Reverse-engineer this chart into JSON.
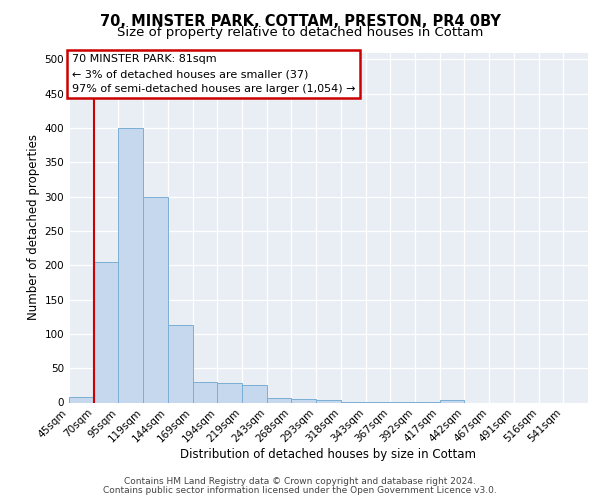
{
  "title_line1": "70, MINSTER PARK, COTTAM, PRESTON, PR4 0BY",
  "title_line2": "Size of property relative to detached houses in Cottam",
  "xlabel": "Distribution of detached houses by size in Cottam",
  "ylabel": "Number of detached properties",
  "bar_values": [
    8,
    205,
    400,
    300,
    113,
    30,
    28,
    25,
    7,
    5,
    3,
    1,
    1,
    1,
    1,
    4,
    0,
    0,
    0,
    0,
    0
  ],
  "bar_labels": [
    "45sqm",
    "70sqm",
    "95sqm",
    "119sqm",
    "144sqm",
    "169sqm",
    "194sqm",
    "219sqm",
    "243sqm",
    "268sqm",
    "293sqm",
    "318sqm",
    "343sqm",
    "367sqm",
    "392sqm",
    "417sqm",
    "442sqm",
    "467sqm",
    "491sqm",
    "516sqm",
    "541sqm"
  ],
  "bar_color": "#c5d8ed",
  "bar_edge_color": "#7bafd4",
  "vline_x": 1.0,
  "vline_color": "#cc0000",
  "annotation_text": "70 MINSTER PARK: 81sqm\n← 3% of detached houses are smaller (37)\n97% of semi-detached houses are larger (1,054) →",
  "annotation_box_color": "#ffffff",
  "annotation_box_edge": "#cc0000",
  "ylim": [
    0,
    510
  ],
  "yticks": [
    0,
    50,
    100,
    150,
    200,
    250,
    300,
    350,
    400,
    450,
    500
  ],
  "plot_background": "#e8eef4",
  "footer_line1": "Contains HM Land Registry data © Crown copyright and database right 2024.",
  "footer_line2": "Contains public sector information licensed under the Open Government Licence v3.0.",
  "title_fontsize": 10.5,
  "subtitle_fontsize": 9.5,
  "xlabel_fontsize": 8.5,
  "ylabel_fontsize": 8.5,
  "tick_fontsize": 7.5,
  "annotation_fontsize": 8,
  "footer_fontsize": 6.5
}
